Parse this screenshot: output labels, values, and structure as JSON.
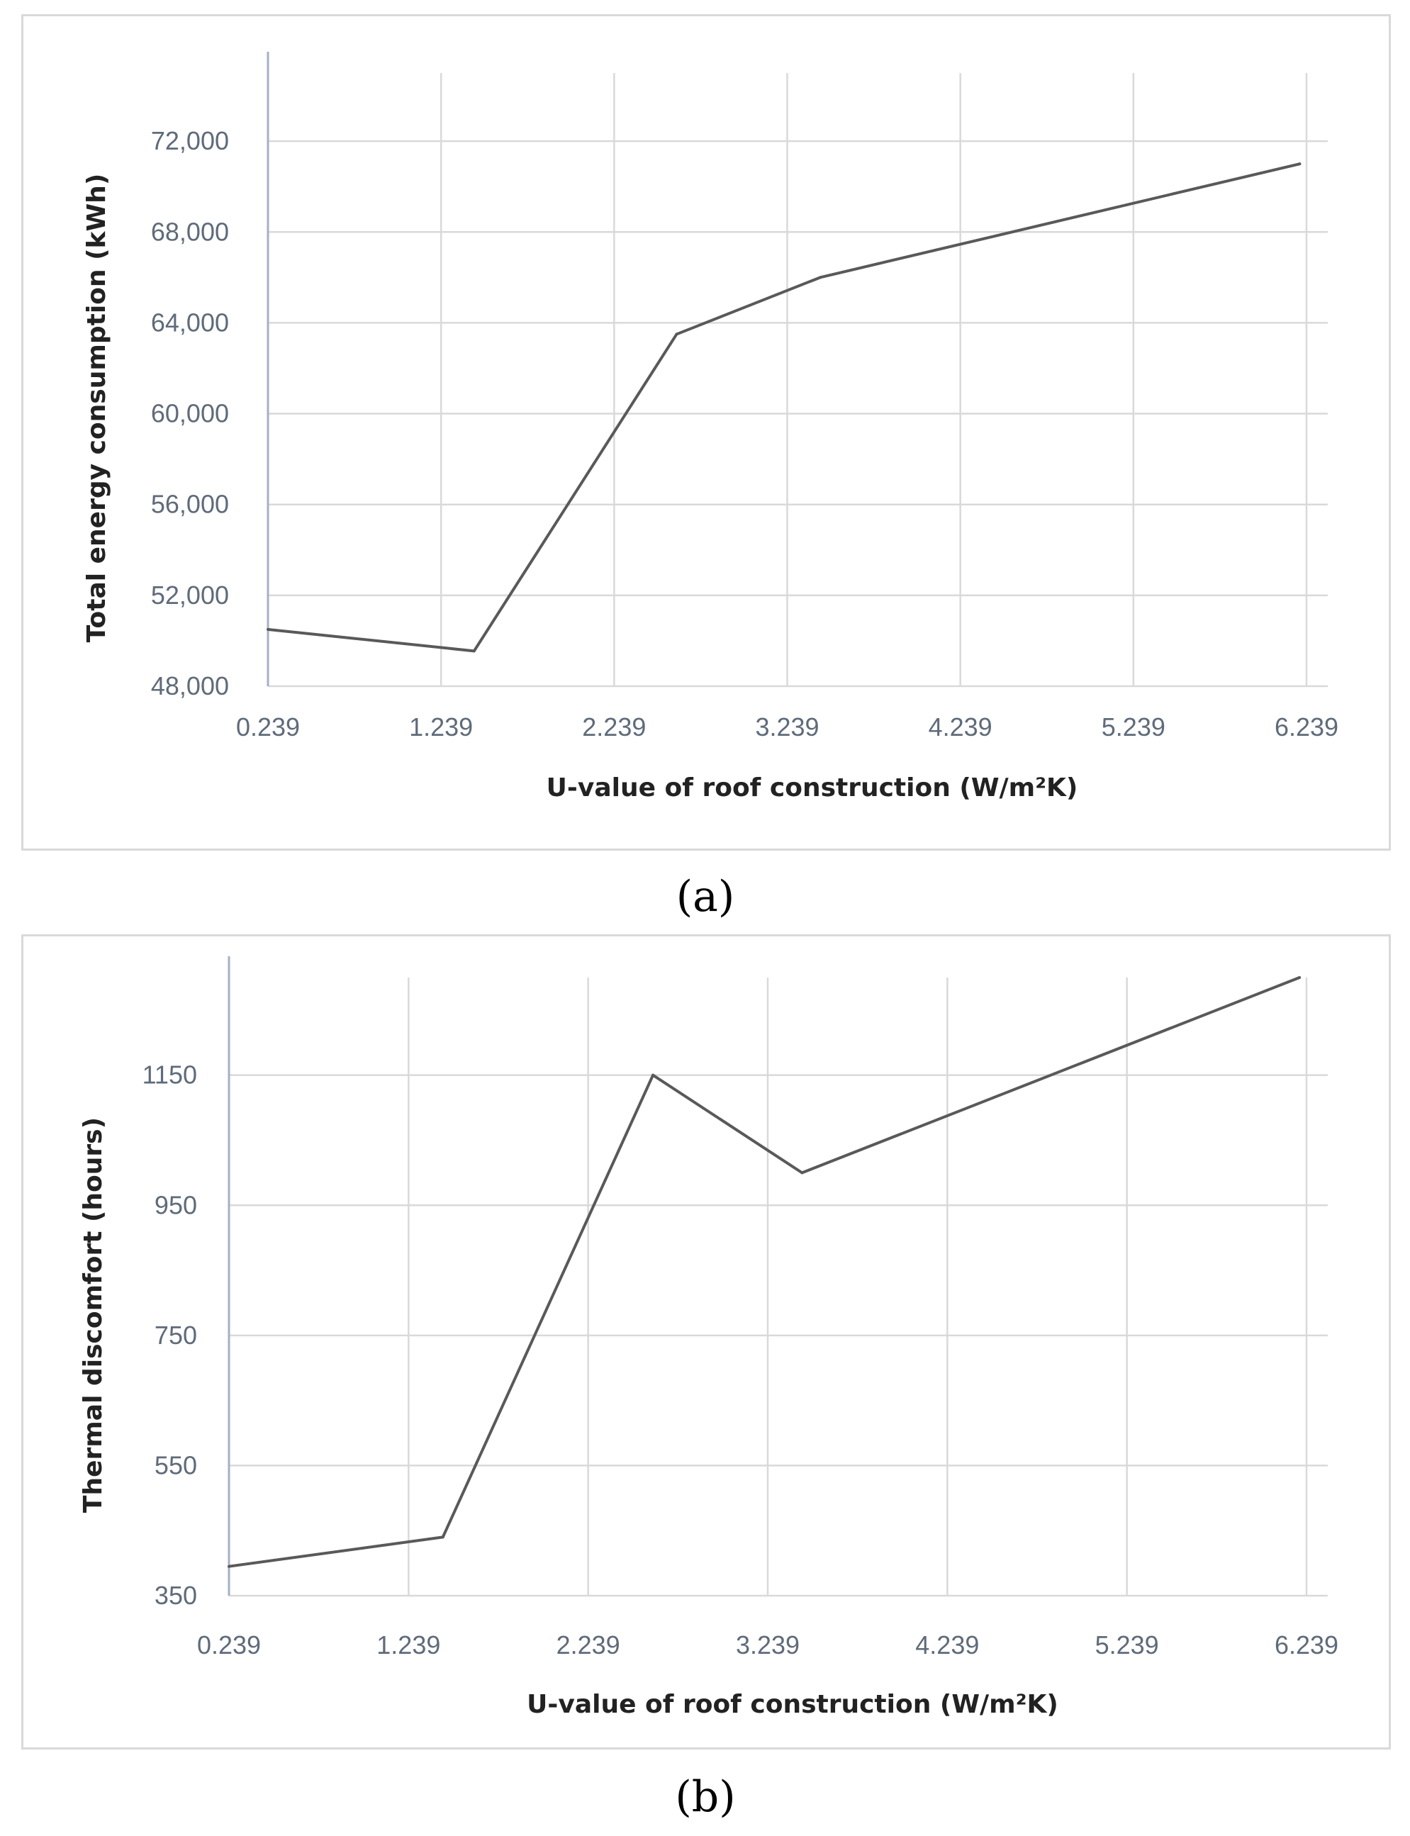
{
  "chart_data": [
    {
      "type": "line",
      "panel_label": "(a)",
      "title": "",
      "xlabel": "U-value of roof construction (W/m²K)",
      "ylabel": "Total energy consumption (kWh)",
      "x_tick_labels": [
        "0.239",
        "1.239",
        "2.239",
        "3.239",
        "4.239",
        "5.239",
        "6.239"
      ],
      "x_ticks": [
        0.239,
        1.239,
        2.239,
        3.239,
        4.239,
        5.239,
        6.239
      ],
      "y_tick_labels": [
        "48,000",
        "52,000",
        "56,000",
        "60,000",
        "64,000",
        "68,000",
        "72,000"
      ],
      "y_ticks": [
        48000,
        52000,
        56000,
        60000,
        64000,
        68000,
        72000
      ],
      "xlim": [
        0.239,
        6.239
      ],
      "ylim": [
        48000,
        75000
      ],
      "x": [
        0.239,
        1.43,
        2.6,
        3.43,
        6.2
      ],
      "values": [
        50500,
        49550,
        63500,
        66000,
        71000
      ],
      "grid": true
    },
    {
      "type": "line",
      "panel_label": "(b)",
      "title": "",
      "xlabel": "U-value of roof construction (W/m²K)",
      "ylabel": "Thermal discomfort (hours)",
      "x_tick_labels": [
        "0.239",
        "1.239",
        "2.239",
        "3.239",
        "4.239",
        "5.239",
        "6.239"
      ],
      "x_ticks": [
        0.239,
        1.239,
        2.239,
        3.239,
        4.239,
        5.239,
        6.239
      ],
      "y_tick_labels": [
        "350",
        "550",
        "750",
        "950",
        "1150"
      ],
      "y_ticks": [
        350,
        550,
        750,
        950,
        1150
      ],
      "xlim": [
        0.239,
        6.239
      ],
      "ylim": [
        350,
        1300
      ],
      "x": [
        0.239,
        1.43,
        2.6,
        3.43,
        6.2
      ],
      "values": [
        395,
        440,
        1150,
        1000,
        1300
      ],
      "grid": true
    }
  ]
}
